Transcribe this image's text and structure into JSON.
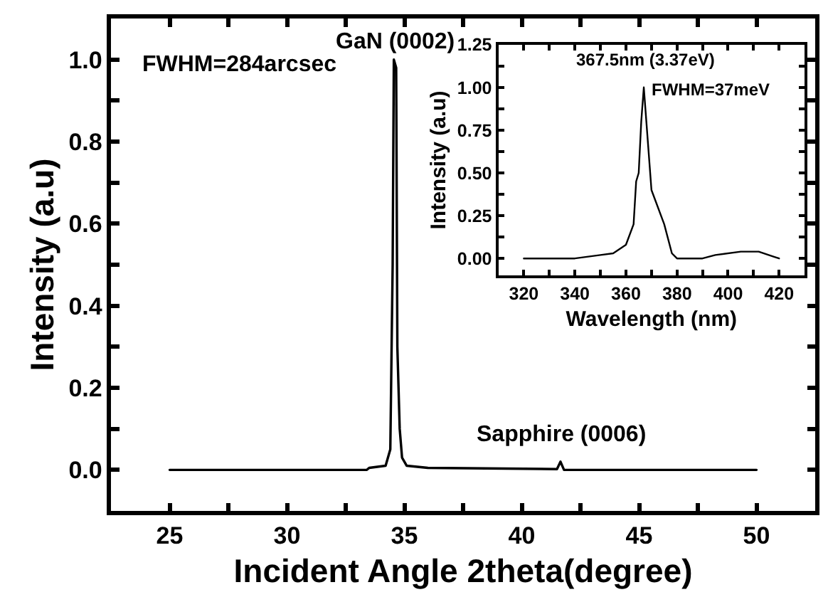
{
  "chart_data": [
    {
      "type": "line",
      "xlabel": "Incident Angle 2theta(degree)",
      "ylabel": "Intensity (a.u)",
      "series": [
        {
          "color": "#000000",
          "x": [
            25,
            33.4,
            33.5,
            34.2,
            34.4,
            34.5,
            34.55,
            34.65,
            34.7,
            34.8,
            34.9,
            35.1,
            36,
            41.5,
            41.65,
            41.8,
            50
          ],
          "values": [
            0,
            0,
            0.005,
            0.01,
            0.05,
            0.5,
            1.0,
            0.98,
            0.3,
            0.1,
            0.03,
            0.01,
            0.005,
            0.002,
            0.02,
            0.0,
            0
          ]
        }
      ],
      "xlim": [
        22.5,
        52.5
      ],
      "ylim": [
        -0.1,
        1.1
      ],
      "xticks": [
        25,
        {
          "value": 27.5,
          "label": null
        },
        30,
        {
          "value": 32.5,
          "label": null
        },
        35,
        {
          "value": 37.5,
          "label": null
        },
        40,
        {
          "value": 42.5,
          "label": null
        },
        45,
        {
          "value": 47.5,
          "label": null
        },
        50
      ],
      "yticks": [
        {
          "value": 0,
          "label": "0.0"
        },
        {
          "value": 0.1,
          "label": null
        },
        0.2,
        {
          "value": 0.3,
          "label": null
        },
        0.4,
        {
          "value": 0.5,
          "label": null
        },
        0.6,
        {
          "value": 0.7,
          "label": null
        },
        0.8,
        {
          "value": 0.9,
          "label": null
        },
        {
          "value": 1.0,
          "label": "1.0"
        }
      ],
      "annotations": [
        {
          "text": "GaN (0002)",
          "x": 34.6,
          "y": 1.0
        },
        {
          "text": "Sapphire (0006)",
          "x": 41.7,
          "y": 0.02
        },
        "FWHM=284arcsec"
      ],
      "marker": "none",
      "line_style": "solid"
    },
    {
      "type": "line",
      "xlabel": "Wavelength (nm)",
      "ylabel": "Intensity (a.u)",
      "series": [
        {
          "color": "#000000",
          "x": [
            320,
            340,
            350,
            355,
            360,
            363,
            364,
            365,
            366,
            367,
            368,
            370,
            375,
            378,
            380,
            390,
            395,
            405,
            412,
            418,
            420
          ],
          "values": [
            0,
            0,
            0.02,
            0.03,
            0.08,
            0.2,
            0.45,
            0.5,
            0.8,
            1.0,
            0.8,
            0.4,
            0.2,
            0.03,
            0,
            0,
            0.02,
            0.04,
            0.04,
            0.01,
            0
          ]
        }
      ],
      "xlim": [
        310,
        430
      ],
      "ylim": [
        -0.1,
        1.25
      ],
      "xticks": [
        320,
        {
          "value": 330,
          "label": null
        },
        340,
        {
          "value": 350,
          "label": null
        },
        360,
        {
          "value": 370,
          "label": null
        },
        380,
        {
          "value": 390,
          "label": null
        },
        400,
        {
          "value": 410,
          "label": null
        },
        420
      ],
      "yticks": [
        {
          "value": 0,
          "label": "0.00"
        },
        {
          "value": 0.125,
          "label": null
        },
        0.25,
        {
          "value": 0.375,
          "label": null
        },
        {
          "value": 0.5,
          "label": "0.50"
        },
        {
          "value": 0.625,
          "label": null
        },
        0.75,
        {
          "value": 0.875,
          "label": null
        },
        {
          "value": 1.0,
          "label": "1.00"
        },
        {
          "value": 1.125,
          "label": null
        },
        1.25
      ],
      "annotations": [
        {
          "text": "367.5nm (3.37eV)",
          "x": 367.5,
          "y": 1.0
        },
        {
          "text": "FWHM=37meV",
          "x": 368,
          "y": 1.0
        }
      ],
      "marker": "none",
      "line_style": "solid"
    }
  ]
}
